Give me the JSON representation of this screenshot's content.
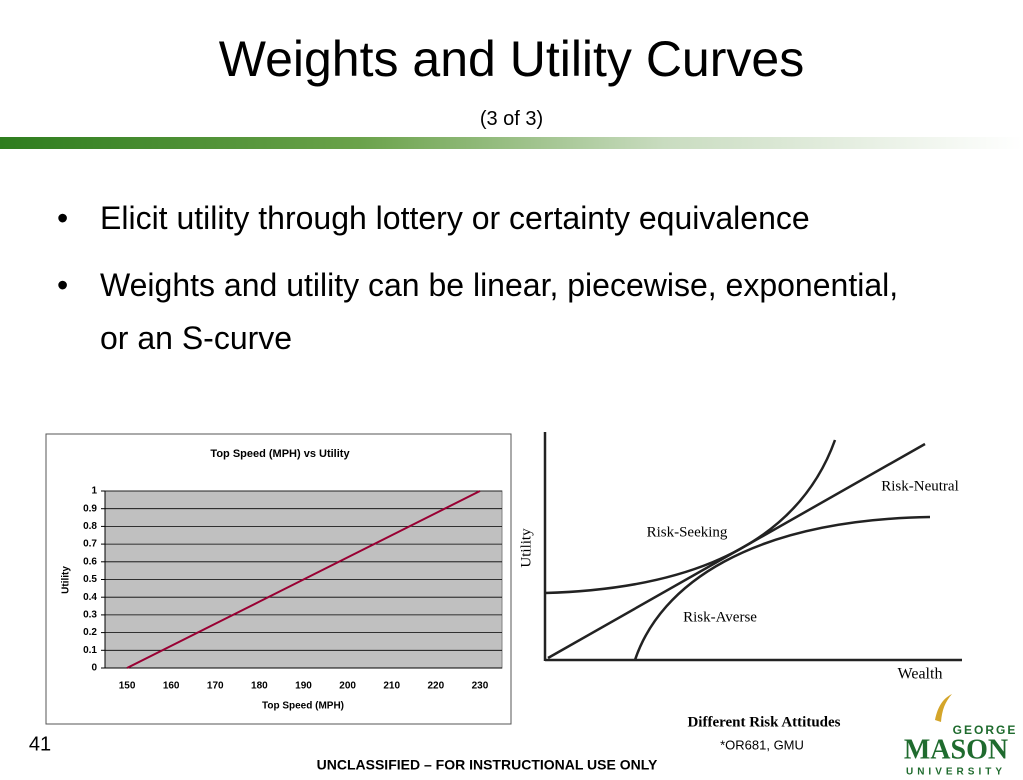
{
  "title": "Weights and Utility Curves",
  "subtitle": "(3 of 3)",
  "bullets": [
    "Elicit utility through lottery or certainty equivalence",
    "Weights and utility can be linear, piecewise, exponential, or an S-curve"
  ],
  "chart_data": {
    "type": "line",
    "title": "Top Speed (MPH) vs Utility",
    "x_label": "Top Speed (MPH)",
    "y_label": "Utility",
    "categories": [
      150,
      160,
      170,
      180,
      190,
      200,
      210,
      220,
      230
    ],
    "series": [
      {
        "name": "Utility",
        "color": "#990033",
        "values": [
          0,
          0.125,
          0.25,
          0.375,
          0.5,
          0.625,
          0.75,
          0.875,
          1
        ]
      }
    ],
    "ylim": [
      0,
      1
    ],
    "yticks": [
      0,
      0.1,
      0.2,
      0.3,
      0.4,
      0.5,
      0.6,
      0.7,
      0.8,
      0.9,
      1
    ],
    "grid": true,
    "plot_background": "#c0c0c0"
  },
  "risk_figure": {
    "y_label": "Utility",
    "x_label": "Wealth",
    "curves": [
      "Risk-Neutral",
      "Risk-Seeking",
      "Risk-Averse"
    ],
    "caption": "Different Risk Attitudes"
  },
  "page_number": "41",
  "credit": "*OR681, GMU",
  "footer": "UNCLASSIFIED – FOR INSTRUCTIONAL USE ONLY",
  "logo": {
    "top": "GEORGE",
    "main": "MASON",
    "bottom": "UNIVERSITY"
  }
}
